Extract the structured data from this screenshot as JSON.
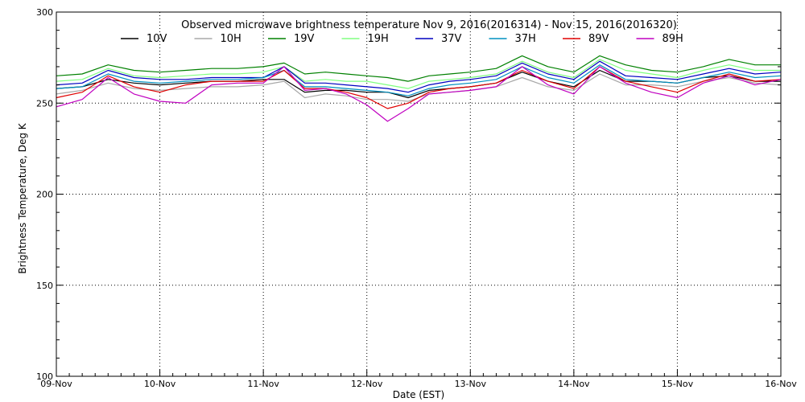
{
  "chart_data": {
    "type": "line",
    "title": "Observed microwave brightness temperature Nov  9, 2016(2016314) - Nov 15, 2016(2016320)",
    "xlabel": "Date (EST)",
    "ylabel": "Brightness Temperature, Deg K",
    "x_ticks": [
      "09-Nov",
      "10-Nov",
      "11-Nov",
      "12-Nov",
      "13-Nov",
      "14-Nov",
      "15-Nov",
      "16-Nov"
    ],
    "xlim": [
      0,
      7
    ],
    "ylim": [
      100,
      300
    ],
    "y_ticks": [
      100,
      150,
      200,
      250,
      300
    ],
    "grid": true,
    "legend_position": "top",
    "x": [
      0,
      0.25,
      0.5,
      0.75,
      1.0,
      1.25,
      1.5,
      1.75,
      2.0,
      2.2,
      2.4,
      2.6,
      2.8,
      3.0,
      3.2,
      3.4,
      3.6,
      3.8,
      4.0,
      4.25,
      4.5,
      4.75,
      5.0,
      5.25,
      5.5,
      5.75,
      6.0,
      6.25,
      6.5,
      6.75,
      7.0
    ],
    "series": [
      {
        "name": "10V",
        "color": "#000000",
        "values": [
          258,
          259,
          263,
          261,
          260,
          261,
          262,
          262,
          263,
          263,
          256,
          257,
          257,
          256,
          256,
          253,
          257,
          258,
          259,
          261,
          267,
          262,
          259,
          268,
          262,
          262,
          261,
          264,
          265,
          262,
          262
        ]
      },
      {
        "name": "10H",
        "color": "#a8a8a8",
        "values": [
          255,
          257,
          261,
          258,
          257,
          258,
          259,
          259,
          260,
          262,
          253,
          255,
          254,
          252,
          252,
          251,
          255,
          256,
          257,
          259,
          264,
          259,
          257,
          266,
          260,
          260,
          259,
          262,
          264,
          261,
          260
        ]
      },
      {
        "name": "19V",
        "color": "#008000",
        "values": [
          265,
          266,
          271,
          268,
          267,
          268,
          269,
          269,
          270,
          272,
          266,
          267,
          266,
          265,
          264,
          262,
          265,
          266,
          267,
          269,
          276,
          270,
          267,
          276,
          271,
          268,
          267,
          270,
          274,
          271,
          271
        ]
      },
      {
        "name": "19H",
        "color": "#80ff80",
        "values": [
          262,
          263,
          269,
          265,
          264,
          265,
          266,
          266,
          267,
          270,
          262,
          263,
          262,
          262,
          260,
          258,
          262,
          263,
          264,
          266,
          273,
          267,
          264,
          274,
          268,
          266,
          264,
          268,
          271,
          268,
          268
        ]
      },
      {
        "name": "37V",
        "color": "#0000c0",
        "values": [
          260,
          261,
          268,
          264,
          263,
          263,
          264,
          264,
          264,
          270,
          261,
          261,
          260,
          259,
          258,
          256,
          260,
          262,
          263,
          265,
          272,
          266,
          263,
          273,
          265,
          264,
          263,
          266,
          269,
          266,
          267
        ]
      },
      {
        "name": "37H",
        "color": "#0090c0",
        "values": [
          258,
          259,
          266,
          262,
          261,
          262,
          263,
          263,
          264,
          268,
          259,
          259,
          258,
          257,
          256,
          254,
          258,
          260,
          261,
          263,
          270,
          264,
          261,
          271,
          263,
          262,
          261,
          264,
          267,
          264,
          265
        ]
      },
      {
        "name": "89V",
        "color": "#e00000",
        "values": [
          253,
          256,
          265,
          259,
          256,
          260,
          262,
          262,
          262,
          268,
          258,
          258,
          256,
          253,
          247,
          250,
          256,
          258,
          259,
          261,
          268,
          262,
          258,
          270,
          262,
          259,
          256,
          262,
          266,
          262,
          263
        ]
      },
      {
        "name": "89H",
        "color": "#c000c0",
        "values": [
          248,
          252,
          264,
          255,
          251,
          250,
          260,
          261,
          261,
          270,
          257,
          258,
          255,
          249,
          240,
          247,
          255,
          256,
          257,
          259,
          270,
          260,
          255,
          270,
          261,
          256,
          253,
          261,
          265,
          260,
          263
        ]
      }
    ]
  }
}
